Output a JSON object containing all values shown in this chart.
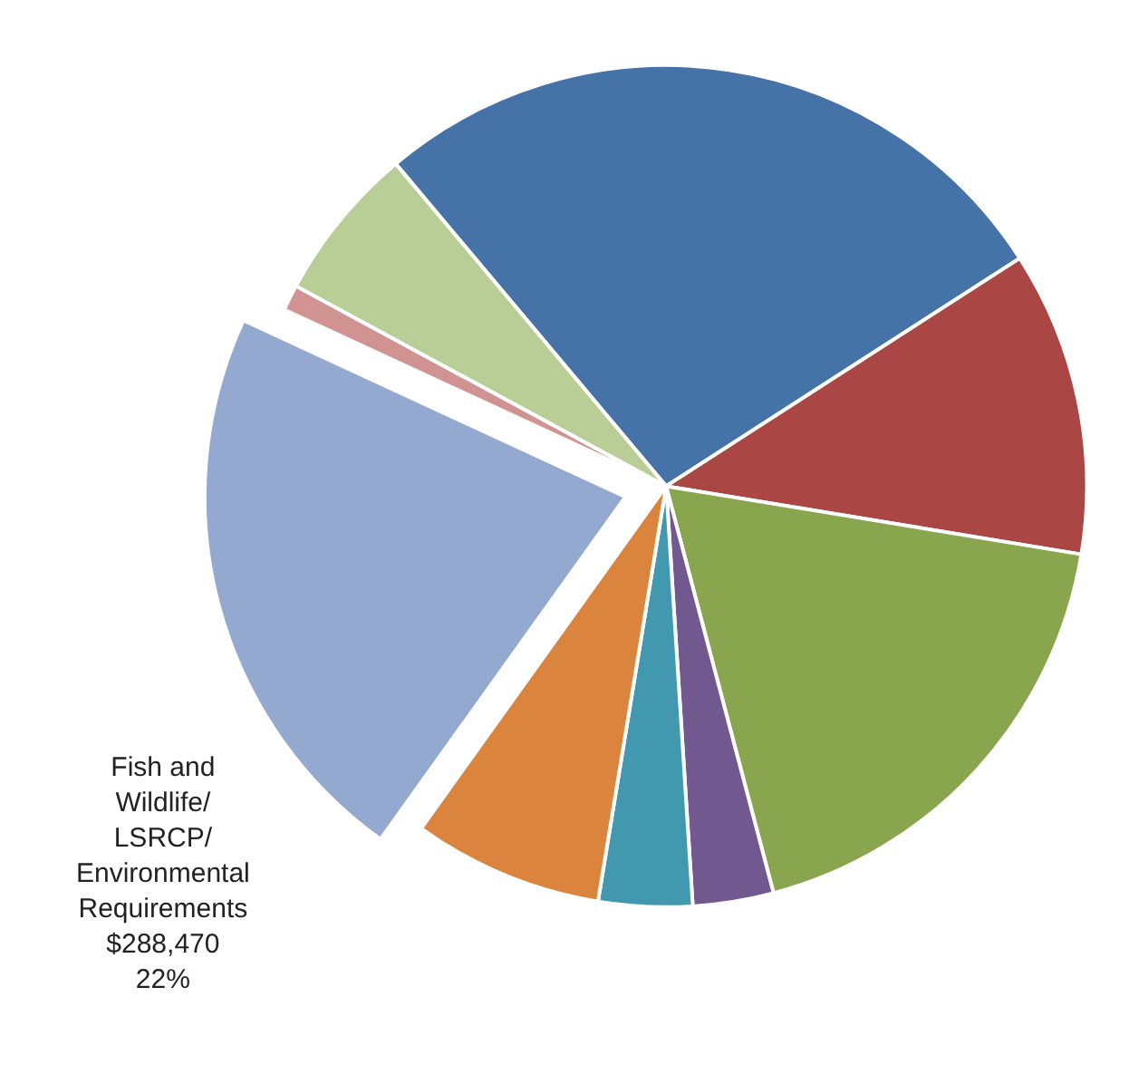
{
  "chart_data": {
    "type": "pie",
    "categories": [
      null,
      null,
      null,
      null,
      null,
      null,
      "Fish and Wildlife/ LSRCP/ Environmental Requirements",
      null,
      null
    ],
    "values": [
      27,
      11.7,
      18.3,
      3.1,
      3.6,
      7.3,
      22,
      1,
      6
    ],
    "colors": [
      "#4572a7",
      "#aa4643",
      "#89a54e",
      "#71588f",
      "#4198af",
      "#db843d",
      "#93a9cf",
      "#d19392",
      "#b9cd96"
    ],
    "value_labels": [
      null,
      null,
      null,
      null,
      null,
      null,
      "$288,470 22%",
      null,
      null
    ],
    "legend": false
  }
}
